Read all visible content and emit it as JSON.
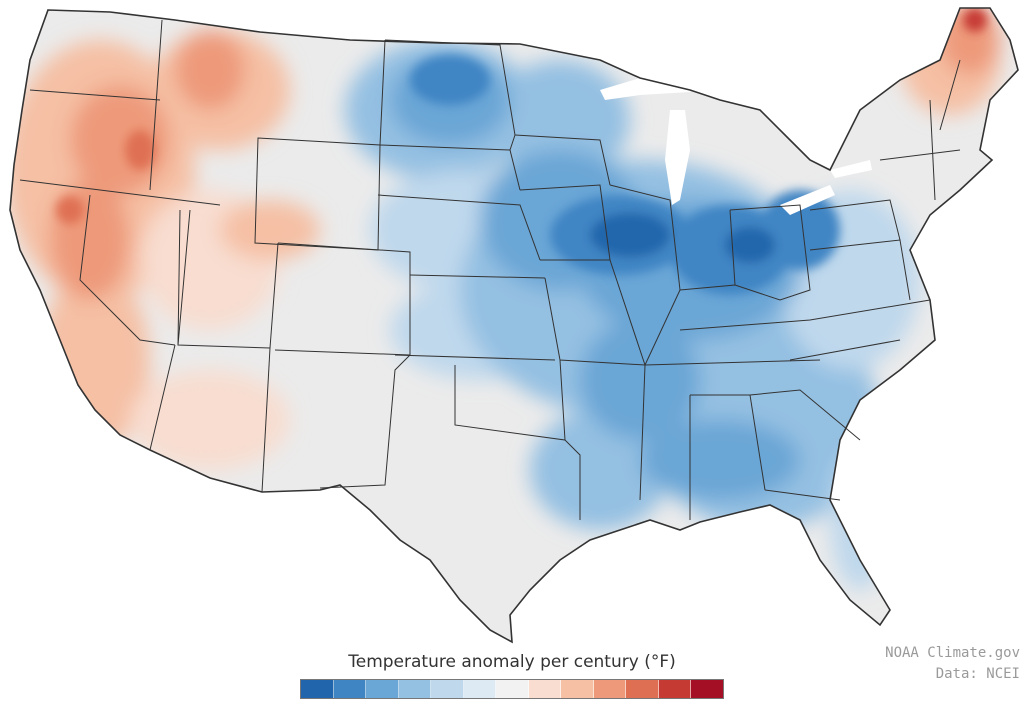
{
  "legend": {
    "title": "Temperature anomaly per century (°F)",
    "colors": [
      "#2166ac",
      "#3f85c4",
      "#6aa6d6",
      "#94c0e2",
      "#bfd8ec",
      "#ddeaf3",
      "#f2f2f2",
      "#f8ddd0",
      "#f5c0a4",
      "#ee9a7a",
      "#df6f53",
      "#c63a34",
      "#a50f26"
    ]
  },
  "credits": {
    "line1": "NOAA Climate.gov",
    "line2": "Data: NCEI"
  },
  "map_data": {
    "region": "Contiguous United States",
    "colors": {
      "land_neutral": "#ebebeb",
      "state_border": "#333333",
      "water": "#ffffff"
    },
    "warming_regions": [
      "West Coast",
      "Great Basin",
      "Northern Rockies",
      "Northern Maine"
    ],
    "cooling_regions": [
      "Upper Midwest",
      "Central Midwest",
      "Ohio Valley",
      "Southeast",
      "Lower Mississippi Valley"
    ],
    "strongest_cooling": "Iowa / Illinois / Indiana / Ohio",
    "strongest_warming": "Northern Maine"
  }
}
